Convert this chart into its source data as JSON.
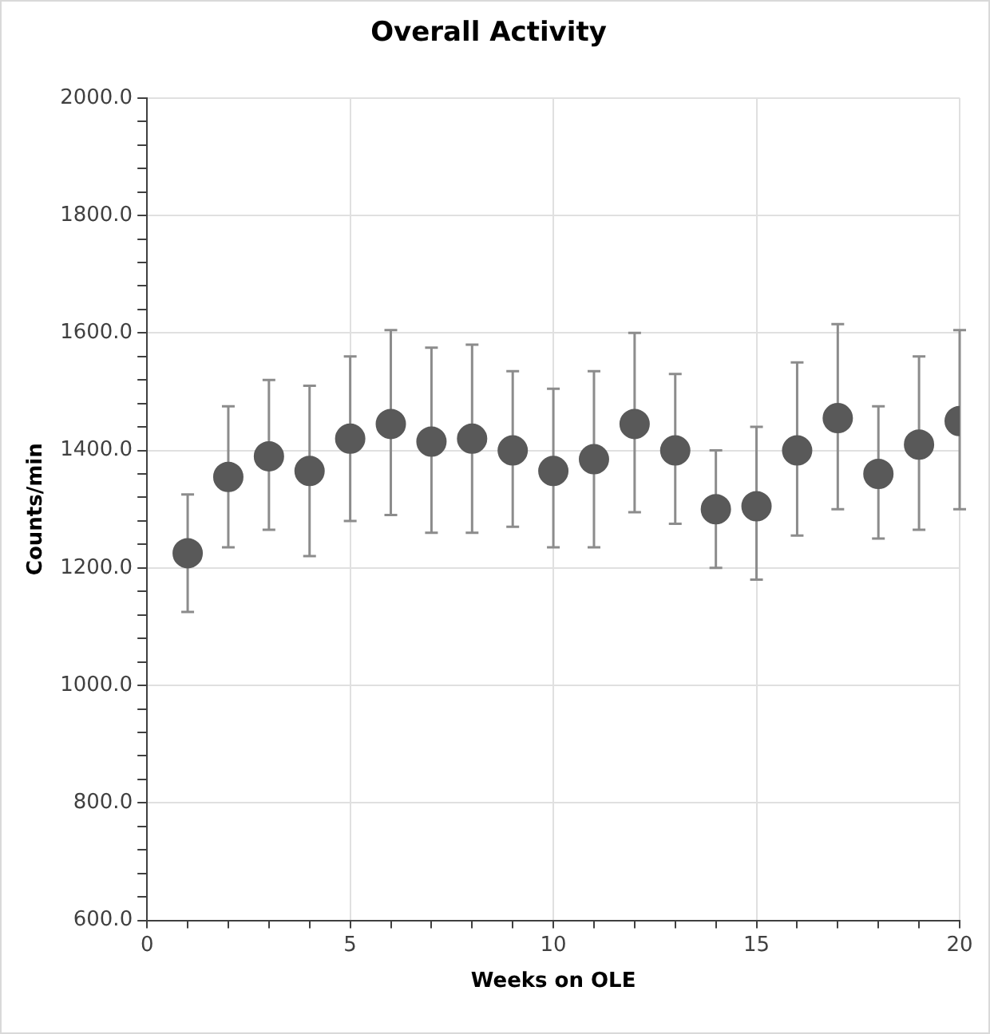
{
  "chart_data": {
    "type": "scatter",
    "title": "Overall Activity",
    "xlabel": "Weeks on OLE",
    "ylabel": "Counts/min",
    "x": [
      1,
      2,
      3,
      4,
      5,
      6,
      7,
      8,
      9,
      10,
      11,
      12,
      13,
      14,
      15,
      16,
      17,
      18,
      19,
      20
    ],
    "series": [
      {
        "color": "#595959",
        "values": [
          1225,
          1355,
          1390,
          1365,
          1420,
          1445,
          1415,
          1420,
          1400,
          1365,
          1385,
          1445,
          1400,
          1300,
          1305,
          1400,
          1455,
          1360,
          1410,
          1450
        ],
        "errors": [
          [
            1125,
            1325
          ],
          [
            1235,
            1475
          ],
          [
            1265,
            1520
          ],
          [
            1220,
            1510
          ],
          [
            1280,
            1560
          ],
          [
            1290,
            1605
          ],
          [
            1260,
            1575
          ],
          [
            1260,
            1580
          ],
          [
            1270,
            1535
          ],
          [
            1235,
            1505
          ],
          [
            1235,
            1535
          ],
          [
            1295,
            1600
          ],
          [
            1275,
            1530
          ],
          [
            1200,
            1400
          ],
          [
            1180,
            1440
          ],
          [
            1255,
            1550
          ],
          [
            1300,
            1615
          ],
          [
            1250,
            1475
          ],
          [
            1265,
            1560
          ],
          [
            1300,
            1605
          ]
        ]
      }
    ],
    "xlim": [
      0,
      20
    ],
    "xticks": [
      0,
      {
        "value": 1,
        "label": null
      },
      {
        "value": 2,
        "label": null
      },
      {
        "value": 3,
        "label": null
      },
      {
        "value": 4,
        "label": null
      },
      5,
      {
        "value": 6,
        "label": null
      },
      {
        "value": 7,
        "label": null
      },
      {
        "value": 8,
        "label": null
      },
      {
        "value": 9,
        "label": null
      },
      10,
      {
        "value": 11,
        "label": null
      },
      {
        "value": 12,
        "label": null
      },
      {
        "value": 13,
        "label": null
      },
      {
        "value": 14,
        "label": null
      },
      15,
      {
        "value": 16,
        "label": null
      },
      {
        "value": 17,
        "label": null
      },
      {
        "value": 18,
        "label": null
      },
      {
        "value": 19,
        "label": null
      },
      20
    ],
    "ylim": [
      600,
      2000
    ],
    "yticks": [
      {
        "value": 600,
        "label": "600.0"
      },
      {
        "value": 640,
        "label": null
      },
      {
        "value": 680,
        "label": null
      },
      {
        "value": 720,
        "label": null
      },
      {
        "value": 760,
        "label": null
      },
      {
        "value": 800,
        "label": "800.0"
      },
      {
        "value": 840,
        "label": null
      },
      {
        "value": 880,
        "label": null
      },
      {
        "value": 920,
        "label": null
      },
      {
        "value": 960,
        "label": null
      },
      {
        "value": 1000,
        "label": "1000.0"
      },
      {
        "value": 1040,
        "label": null
      },
      {
        "value": 1080,
        "label": null
      },
      {
        "value": 1120,
        "label": null
      },
      {
        "value": 1160,
        "label": null
      },
      {
        "value": 1200,
        "label": "1200.0"
      },
      {
        "value": 1240,
        "label": null
      },
      {
        "value": 1280,
        "label": null
      },
      {
        "value": 1320,
        "label": null
      },
      {
        "value": 1360,
        "label": null
      },
      {
        "value": 1400,
        "label": "1400.0"
      },
      {
        "value": 1440,
        "label": null
      },
      {
        "value": 1480,
        "label": null
      },
      {
        "value": 1520,
        "label": null
      },
      {
        "value": 1560,
        "label": null
      },
      {
        "value": 1600,
        "label": "1600.0"
      },
      {
        "value": 1640,
        "label": null
      },
      {
        "value": 1680,
        "label": null
      },
      {
        "value": 1720,
        "label": null
      },
      {
        "value": 1760,
        "label": null
      },
      {
        "value": 1800,
        "label": "1800.0"
      },
      {
        "value": 1840,
        "label": null
      },
      {
        "value": 1880,
        "label": null
      },
      {
        "value": 1920,
        "label": null
      },
      {
        "value": 1960,
        "label": null
      },
      {
        "value": 2000,
        "label": "2000.0"
      }
    ],
    "grid": true,
    "legend": false,
    "marker": "circle"
  }
}
